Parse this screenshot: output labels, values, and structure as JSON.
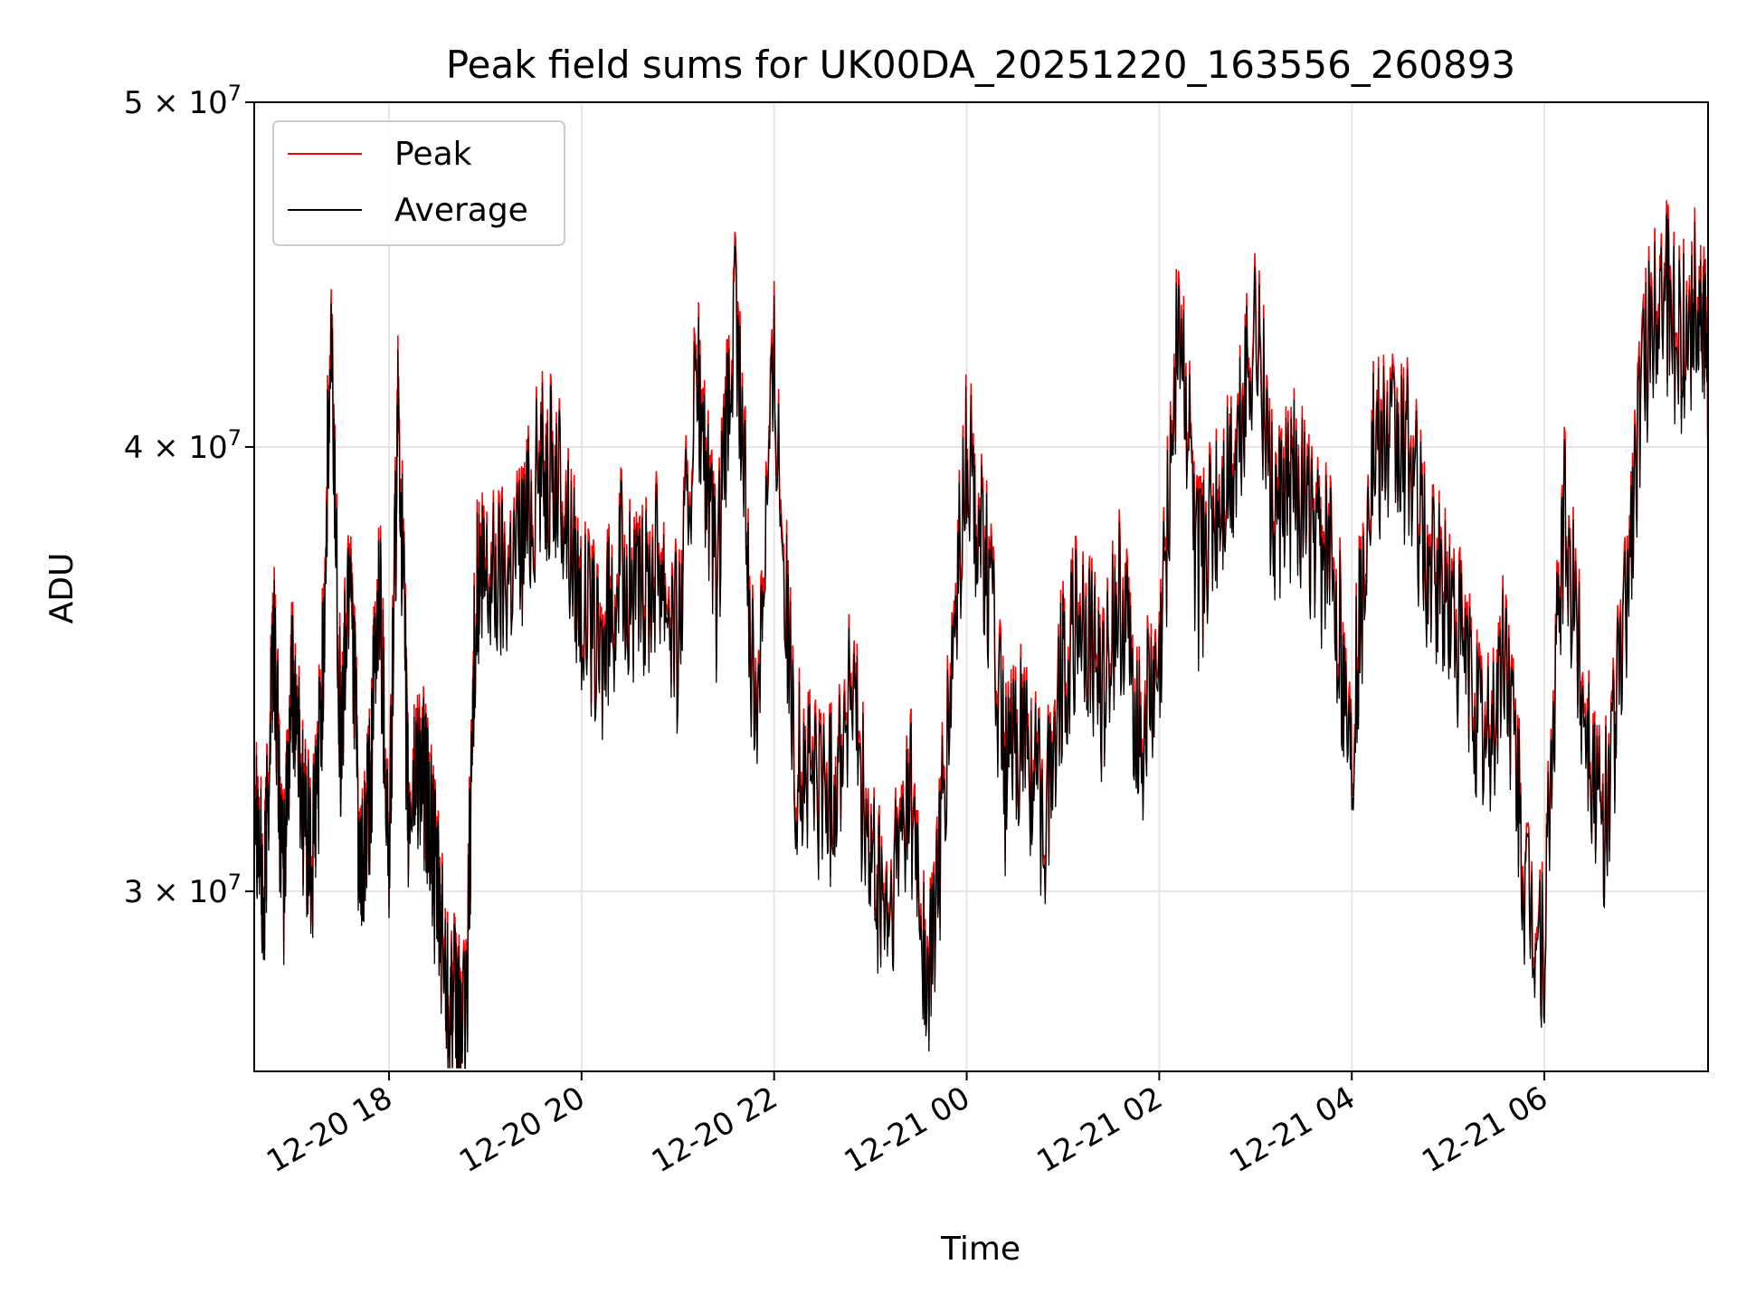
{
  "chart_data": {
    "type": "line",
    "title": "Peak field sums for UK00DA_20251220_163556_260893",
    "xlabel": "Time",
    "ylabel": "ADU",
    "yscale": "log",
    "grid": true,
    "legend_position": "top-left",
    "xlim_hours": [
      -1.4,
      13.7
    ],
    "ylim": [
      26700000,
      50000000
    ],
    "x_unit": "hours since 2025-12-20 18:00",
    "x_ticks": [
      {
        "value": 0,
        "label": "12-20 18"
      },
      {
        "value": 2,
        "label": "12-20 20"
      },
      {
        "value": 4,
        "label": "12-20 22"
      },
      {
        "value": 6,
        "label": "12-21 00"
      },
      {
        "value": 8,
        "label": "12-21 02"
      },
      {
        "value": 10,
        "label": "12-21 04"
      },
      {
        "value": 12,
        "label": "12-21 06"
      }
    ],
    "y_ticks": [
      {
        "value": 30000000,
        "label": "3 × 10^7",
        "mantissa": "3",
        "exponent": "7"
      },
      {
        "value": 40000000,
        "label": "4 × 10^7",
        "mantissa": "4",
        "exponent": "7"
      },
      {
        "value": 50000000,
        "label": "5 × 10^7",
        "mantissa": "5",
        "exponent": "7"
      }
    ],
    "series": [
      {
        "name": "Peak",
        "color": "#ff0000",
        "offset_ratio": 1.008,
        "x": [
          -1.4,
          -1.3,
          -1.2,
          -1.1,
          -1.0,
          -0.9,
          -0.8,
          -0.7,
          -0.6,
          -0.5,
          -0.4,
          -0.3,
          -0.2,
          -0.1,
          0.0,
          0.1,
          0.2,
          0.3,
          0.4,
          0.5,
          0.6,
          0.7,
          0.8,
          0.9,
          1.0,
          1.2,
          1.4,
          1.6,
          1.8,
          2.0,
          2.2,
          2.4,
          2.6,
          2.8,
          3.0,
          3.2,
          3.4,
          3.6,
          3.8,
          4.0,
          4.2,
          4.4,
          4.6,
          4.8,
          5.0,
          5.2,
          5.4,
          5.6,
          5.8,
          6.0,
          6.2,
          6.4,
          6.6,
          6.8,
          7.0,
          7.2,
          7.4,
          7.6,
          7.8,
          8.0,
          8.2,
          8.4,
          8.6,
          8.8,
          9.0,
          9.2,
          9.4,
          9.6,
          9.8,
          10.0,
          10.2,
          10.4,
          10.6,
          10.8,
          11.0,
          11.2,
          11.4,
          11.6,
          11.8,
          12.0,
          12.2,
          12.4,
          12.6,
          12.8,
          13.0,
          13.2,
          13.4,
          13.6,
          13.7
        ],
        "values": [
          33000000,
          29500000,
          36000000,
          30000000,
          35000000,
          32000000,
          30500000,
          34000000,
          43000000,
          33000000,
          38000000,
          30000000,
          32000000,
          37000000,
          30500000,
          41500000,
          31500000,
          33000000,
          32000000,
          30000000,
          28500000,
          27800000,
          27500000,
          36500000,
          37000000,
          37200000,
          38200000,
          40000000,
          39000000,
          36500000,
          35000000,
          37300000,
          36200000,
          37800000,
          35500000,
          42000000,
          36500000,
          44000000,
          33500000,
          42500000,
          33000000,
          32500000,
          32000000,
          34500000,
          30500000,
          29500000,
          32500000,
          28000000,
          33000000,
          40000000,
          37500000,
          32500000,
          33500000,
          31500000,
          35000000,
          36000000,
          34500000,
          36500000,
          33500000,
          34500000,
          44000000,
          37000000,
          38500000,
          40000000,
          44000000,
          38000000,
          39500000,
          37800000,
          37300000,
          33000000,
          40000000,
          40200000,
          40100000,
          37000000,
          36500000,
          35000000,
          33000000,
          35500000,
          30000000,
          29000000,
          38500000,
          34500000,
          31000000,
          35000000,
          41500000,
          45000000,
          43000000,
          44500000,
          42000000
        ]
      },
      {
        "name": "Average",
        "color": "#000000",
        "offset_ratio": 1.0,
        "x": [
          -1.4,
          -1.3,
          -1.2,
          -1.1,
          -1.0,
          -0.9,
          -0.8,
          -0.7,
          -0.6,
          -0.5,
          -0.4,
          -0.3,
          -0.2,
          -0.1,
          0.0,
          0.1,
          0.2,
          0.3,
          0.4,
          0.5,
          0.6,
          0.7,
          0.8,
          0.9,
          1.0,
          1.2,
          1.4,
          1.6,
          1.8,
          2.0,
          2.2,
          2.4,
          2.6,
          2.8,
          3.0,
          3.2,
          3.4,
          3.6,
          3.8,
          4.0,
          4.2,
          4.4,
          4.6,
          4.8,
          5.0,
          5.2,
          5.4,
          5.6,
          5.8,
          6.0,
          6.2,
          6.4,
          6.6,
          6.8,
          7.0,
          7.2,
          7.4,
          7.6,
          7.8,
          8.0,
          8.2,
          8.4,
          8.6,
          8.8,
          9.0,
          9.2,
          9.4,
          9.6,
          9.8,
          10.0,
          10.2,
          10.4,
          10.6,
          10.8,
          11.0,
          11.2,
          11.4,
          11.6,
          11.8,
          12.0,
          12.2,
          12.4,
          12.6,
          12.8,
          13.0,
          13.2,
          13.4,
          13.6,
          13.7
        ],
        "values": [
          32700000,
          29300000,
          35700000,
          29800000,
          34700000,
          31800000,
          30300000,
          33700000,
          42600000,
          32700000,
          37700000,
          29800000,
          31800000,
          36700000,
          30300000,
          41100000,
          31300000,
          32700000,
          31800000,
          29800000,
          28300000,
          27600000,
          27300000,
          36200000,
          36700000,
          36900000,
          37900000,
          39700000,
          38700000,
          36200000,
          34700000,
          37000000,
          35900000,
          37500000,
          35200000,
          41600000,
          36200000,
          43600000,
          33200000,
          42100000,
          32700000,
          32200000,
          31800000,
          34200000,
          30300000,
          29300000,
          32200000,
          27800000,
          32700000,
          39700000,
          37200000,
          32200000,
          33200000,
          31300000,
          34700000,
          35700000,
          34200000,
          36200000,
          33200000,
          34200000,
          43600000,
          36700000,
          38200000,
          39700000,
          43600000,
          37700000,
          39200000,
          37500000,
          37000000,
          32700000,
          39700000,
          39900000,
          39800000,
          36700000,
          36200000,
          34700000,
          32700000,
          35200000,
          29800000,
          28800000,
          38200000,
          34200000,
          30800000,
          34700000,
          41100000,
          44600000,
          42600000,
          44100000,
          41600000
        ]
      }
    ]
  }
}
